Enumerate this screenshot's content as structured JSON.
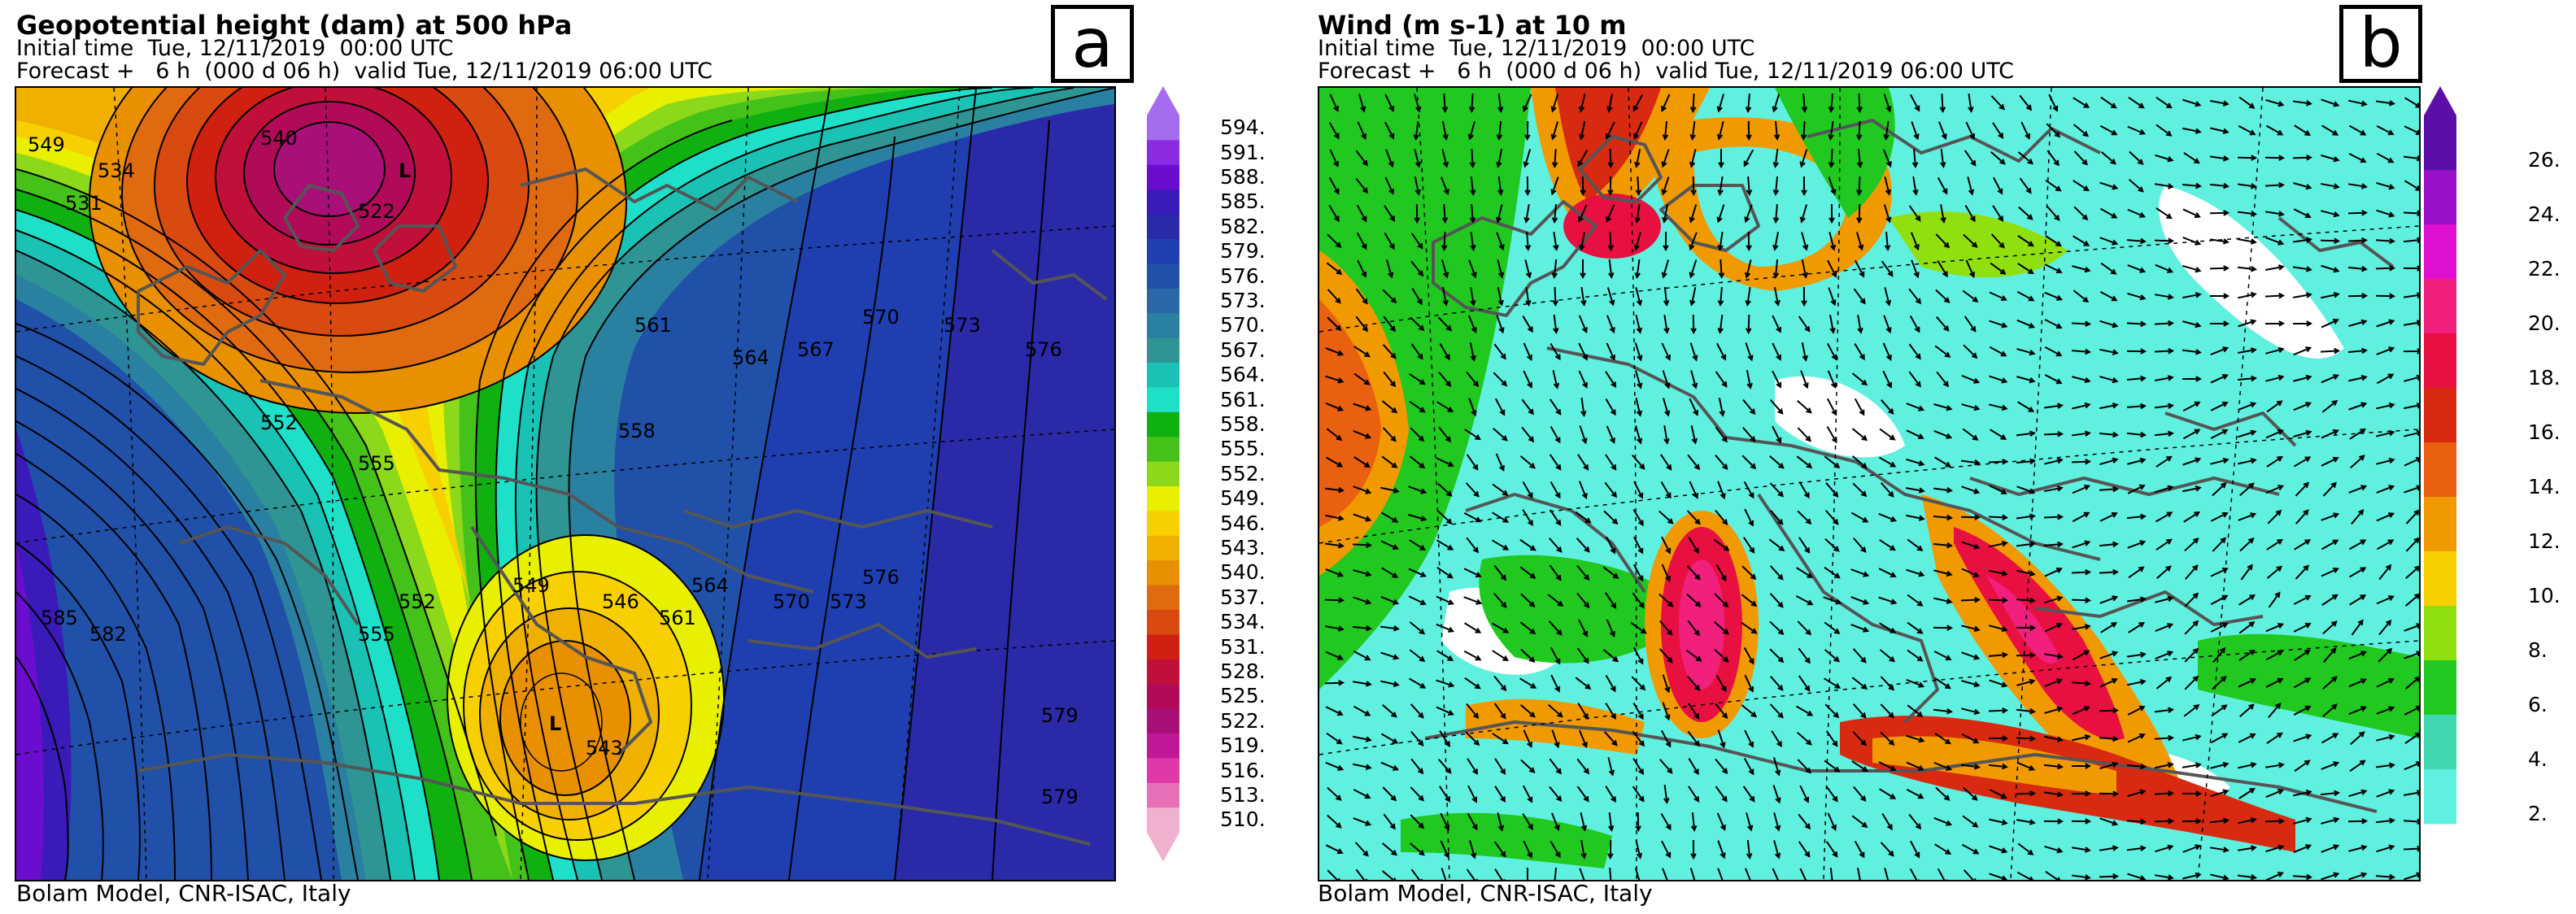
{
  "panel_a": {
    "title": "Geopotential height (dam) at 500 hPa",
    "initial_time": "Initial time  Tue, 12/11/2019  00:00 UTC",
    "forecast": "Forecast +   6 h  (000 d 06 h)  valid Tue, 12/11/2019 06:00 UTC",
    "letter": "a",
    "footer": "Bolam Model, CNR-ISAC, Italy",
    "colorbar_labels": [
      "594.",
      "591.",
      "588.",
      "585.",
      "582.",
      "579.",
      "576.",
      "573.",
      "570.",
      "567.",
      "564.",
      "561.",
      "558.",
      "555.",
      "552.",
      "549.",
      "546.",
      "543.",
      "540.",
      "537.",
      "534.",
      "531.",
      "528.",
      "525.",
      "522.",
      "519.",
      "516.",
      "513.",
      "510."
    ],
    "colorbar_colors": [
      "#a56cf0",
      "#8a2be2",
      "#6a0dcf",
      "#3a1ab8",
      "#2a2aa8",
      "#1f3fb0",
      "#2050a8",
      "#2868a8",
      "#2a80a0",
      "#2e9494",
      "#19c2b4",
      "#1ee0c8",
      "#10b010",
      "#44c21a",
      "#8cd81a",
      "#e8f000",
      "#f8d000",
      "#f0b000",
      "#e89000",
      "#e06a10",
      "#d84a10",
      "#d02010",
      "#c0103a",
      "#b00a58",
      "#a81078",
      "#c01898",
      "#e038a8",
      "#e870b8",
      "#f0b0d0"
    ],
    "map_labels": [
      {
        "text": "549"
      },
      {
        "text": "534"
      },
      {
        "text": "531"
      },
      {
        "text": "L"
      },
      {
        "text": "522"
      },
      {
        "text": "540"
      },
      {
        "text": "552"
      },
      {
        "text": "555"
      },
      {
        "text": "558"
      },
      {
        "text": "561"
      },
      {
        "text": "564"
      },
      {
        "text": "567"
      },
      {
        "text": "570"
      },
      {
        "text": "573"
      },
      {
        "text": "576"
      },
      {
        "text": "579"
      },
      {
        "text": "582"
      },
      {
        "text": "585"
      },
      {
        "text": "546"
      },
      {
        "text": "543"
      },
      {
        "text": "L"
      },
      {
        "text": "549"
      },
      {
        "text": "552"
      },
      {
        "text": "555"
      },
      {
        "text": "561"
      },
      {
        "text": "564"
      },
      {
        "text": "570"
      },
      {
        "text": "573"
      },
      {
        "text": "576"
      },
      {
        "text": "579"
      }
    ]
  },
  "panel_b": {
    "title": "Wind (m s-1) at 10 m",
    "initial_time": "Initial time  Tue, 12/11/2019  00:00 UTC",
    "forecast": "Forecast +   6 h  (000 d 06 h)  valid Tue, 12/11/2019 06:00 UTC",
    "letter": "b",
    "footer": "Bolam Model, CNR-ISAC, Italy",
    "colorbar_labels": [
      "26.",
      "24.",
      "22.",
      "20.",
      "18.",
      "16.",
      "14.",
      "12.",
      "10.",
      "8.",
      "6.",
      "4.",
      "2."
    ],
    "colorbar_colors": [
      "#5b0fa8",
      "#9a10c8",
      "#e010d0",
      "#f0207c",
      "#e81040",
      "#d82a10",
      "#e86010",
      "#f09a00",
      "#f8d000",
      "#90e010",
      "#20c820",
      "#40d8b0",
      "#60f0e0"
    ]
  }
}
